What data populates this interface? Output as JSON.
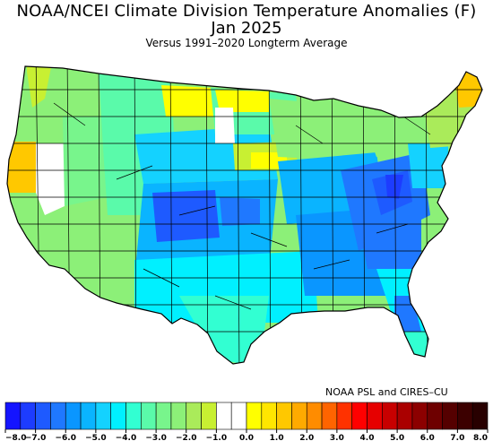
{
  "header": {
    "title": "NOAA/NCEI Climate Division Temperature Anomalies (F)",
    "period": "Jan 2025",
    "subtitle": "Versus 1991–2020 Longterm Average"
  },
  "credit": "NOAA PSL and CIRES–CU",
  "legend": {
    "ticks": [
      "−8.0",
      "−7.0",
      "−6.0",
      "−5.0",
      "−4.0",
      "−3.0",
      "−2.0",
      "−1.0",
      "0.0",
      "1.0",
      "2.0",
      "3.0",
      "4.0",
      "5.0",
      "6.0",
      "7.0",
      "8.0"
    ],
    "colors": [
      "#1414ff",
      "#1d3cff",
      "#1e5aff",
      "#1f78ff",
      "#0a96ff",
      "#0ab4ff",
      "#14d2ff",
      "#00f0ff",
      "#32ffd2",
      "#5afaaa",
      "#78f58c",
      "#8cf078",
      "#aaeb5a",
      "#c8f032",
      "#ffffff",
      "#ffffff",
      "#ffff00",
      "#ffe600",
      "#ffc800",
      "#ffaa00",
      "#ff8c00",
      "#ff6400",
      "#ff3200",
      "#ff0000",
      "#e60000",
      "#c80000",
      "#aa0000",
      "#8c0000",
      "#6e0000",
      "#550000",
      "#3c0000",
      "#280000"
    ]
  },
  "map": {
    "regions": [
      {
        "name": "pacific-northwest",
        "color": "#8cf078"
      },
      {
        "name": "northern-california-coast",
        "color": "#ffc800"
      },
      {
        "name": "california-interior",
        "color": "#ffffff"
      },
      {
        "name": "california-south",
        "color": "#8cf078"
      },
      {
        "name": "great-basin",
        "color": "#78f58c"
      },
      {
        "name": "northern-rockies",
        "color": "#5afaaa"
      },
      {
        "name": "colorado-plateau",
        "color": "#5afaaa"
      },
      {
        "name": "southwest",
        "color": "#8cf078"
      },
      {
        "name": "central-rockies",
        "color": "#14d2ff"
      },
      {
        "name": "colorado-kansas-core",
        "color": "#1e5aff"
      },
      {
        "name": "southern-plains",
        "color": "#00f0ff"
      },
      {
        "name": "texas-gulf",
        "color": "#32ffd2"
      },
      {
        "name": "northern-plains",
        "color": "#5afaaa"
      },
      {
        "name": "upper-midwest",
        "color": "#c8f032"
      },
      {
        "name": "northern-montana",
        "color": "#ffff00"
      },
      {
        "name": "midwest",
        "color": "#0ab4ff"
      },
      {
        "name": "ohio-valley",
        "color": "#1f78ff"
      },
      {
        "name": "appalachia",
        "color": "#1e5aff"
      },
      {
        "name": "southeast",
        "color": "#0a96ff"
      },
      {
        "name": "florida",
        "color": "#00f0ff"
      },
      {
        "name": "florida-south",
        "color": "#32ffd2"
      },
      {
        "name": "great-lakes",
        "color": "#8cf078"
      },
      {
        "name": "mid-atlantic",
        "color": "#14d2ff"
      },
      {
        "name": "new-england",
        "color": "#aaeb5a"
      },
      {
        "name": "northern-maine",
        "color": "#ffc800"
      }
    ]
  }
}
